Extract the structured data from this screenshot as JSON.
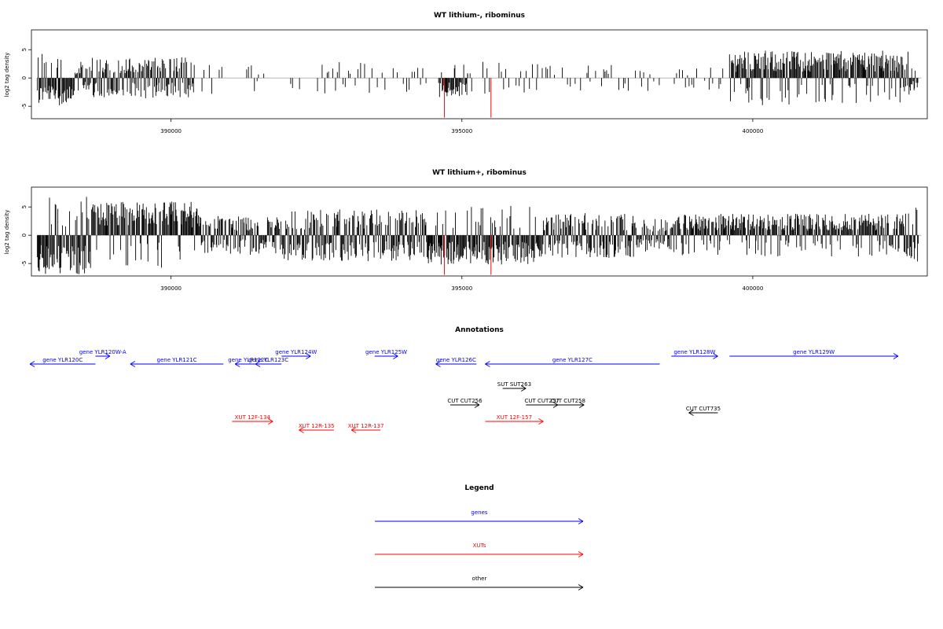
{
  "chart_data": [
    {
      "type": "bar",
      "title": "WT lithium-, ribominus",
      "ylabel": "log2 tag density",
      "xlim": [
        387600,
        403000
      ],
      "ylim": [
        -7.2,
        8.5
      ],
      "yticks": [
        -5,
        0,
        5
      ],
      "xticks": [
        390000,
        395000,
        400000
      ],
      "grid": false,
      "series": [
        {
          "bins": [
            {
              "start": 387700,
              "end": 388350,
              "mode": "neg",
              "amp": 4.2
            },
            {
              "start": 388350,
              "end": 388600,
              "mode": "mix",
              "amp": 2.5
            },
            {
              "start": 388600,
              "end": 390400,
              "mode": "mix",
              "amp": 3.2
            },
            {
              "start": 390400,
              "end": 390900,
              "mode": "sparse",
              "amp": 2.5
            },
            {
              "start": 391300,
              "end": 391600,
              "mode": "sparse",
              "amp": 2.2
            },
            {
              "start": 391950,
              "end": 393700,
              "mode": "sparse",
              "amp": 2.6
            },
            {
              "start": 393700,
              "end": 394400,
              "mode": "sparse",
              "amp": 2.2
            },
            {
              "start": 394600,
              "end": 395100,
              "mode": "neg",
              "amp": 3.0
            },
            {
              "start": 395100,
              "end": 396300,
              "mode": "sparse",
              "amp": 2.6
            },
            {
              "start": 396300,
              "end": 397400,
              "mode": "sparse",
              "amp": 2.2
            },
            {
              "start": 397400,
              "end": 398400,
              "mode": "sparse",
              "amp": 2.0
            },
            {
              "start": 398600,
              "end": 399200,
              "mode": "sparse",
              "amp": 1.8
            },
            {
              "start": 399250,
              "end": 399500,
              "mode": "sparse",
              "amp": 2.0
            },
            {
              "start": 399600,
              "end": 402700,
              "mode": "pos",
              "amp": 4.2
            },
            {
              "start": 402700,
              "end": 402850,
              "mode": "neg",
              "amp": 2.0
            }
          ],
          "highlights": [
            {
              "x": 394700,
              "y": -7.0,
              "color": "#ff0000"
            },
            {
              "x": 395500,
              "y": -7.0,
              "color": "#ff0000"
            }
          ]
        }
      ]
    },
    {
      "type": "bar",
      "title": "WT lithium+, ribominus",
      "ylabel": "log2 tag density",
      "xlim": [
        387600,
        403000
      ],
      "ylim": [
        -7.2,
        8.5
      ],
      "yticks": [
        -5,
        0,
        5
      ],
      "xticks": [
        390000,
        395000,
        400000
      ],
      "grid": false,
      "series": [
        {
          "bins": [
            {
              "start": 387700,
              "end": 388600,
              "mode": "neg",
              "amp": 6.0
            },
            {
              "start": 388600,
              "end": 390500,
              "mode": "pos",
              "amp": 5.2
            },
            {
              "start": 390500,
              "end": 391800,
              "mode": "mix",
              "amp": 3.0
            },
            {
              "start": 391800,
              "end": 394400,
              "mode": "mix",
              "amp": 4.0
            },
            {
              "start": 394400,
              "end": 396400,
              "mode": "neg",
              "amp": 4.5
            },
            {
              "start": 396400,
              "end": 398000,
              "mode": "mix",
              "amp": 3.5
            },
            {
              "start": 398000,
              "end": 398600,
              "mode": "mix",
              "amp": 2.5
            },
            {
              "start": 398600,
              "end": 402600,
              "mode": "pos",
              "amp": 3.3
            },
            {
              "start": 402600,
              "end": 402850,
              "mode": "neg",
              "amp": 4.5
            }
          ],
          "highlights": [
            {
              "x": 394700,
              "y": -7.0,
              "color": "#ff0000"
            },
            {
              "x": 395500,
              "y": -7.0,
              "color": "#ff0000"
            }
          ]
        }
      ]
    }
  ],
  "annotations": {
    "title": "Annotations",
    "features": [
      {
        "label": "gene YLR120C",
        "start": 387500,
        "end": 388700,
        "dir": "left",
        "row": 1,
        "type": "gene"
      },
      {
        "label": "gene YLR120W-A",
        "start": 388700,
        "end": 388950,
        "dir": "right",
        "row": 0,
        "type": "gene"
      },
      {
        "label": "gene YLR121C",
        "start": 389300,
        "end": 390900,
        "dir": "left",
        "row": 1,
        "type": "gene"
      },
      {
        "label": "gene YLR122C",
        "start": 391100,
        "end": 391550,
        "dir": "left",
        "row": 1,
        "type": "gene"
      },
      {
        "label": "gene YLR123C",
        "start": 391450,
        "end": 391900,
        "dir": "left",
        "row": 1,
        "type": "gene"
      },
      {
        "label": "gene YLR124W",
        "start": 391900,
        "end": 392400,
        "dir": "right",
        "row": 0,
        "type": "gene"
      },
      {
        "label": "gene YLR125W",
        "start": 393500,
        "end": 393900,
        "dir": "right",
        "row": 0,
        "type": "gene"
      },
      {
        "label": "gene YLR126C",
        "start": 394550,
        "end": 395250,
        "dir": "left",
        "row": 1,
        "type": "gene"
      },
      {
        "label": "gene YLR127C",
        "start": 395400,
        "end": 398400,
        "dir": "left",
        "row": 1,
        "type": "gene"
      },
      {
        "label": "gene YLR128W",
        "start": 398600,
        "end": 399400,
        "dir": "right",
        "row": 0,
        "type": "gene"
      },
      {
        "label": "gene YLR129W",
        "start": 399600,
        "end": 402500,
        "dir": "right",
        "row": 0,
        "type": "gene"
      },
      {
        "label": "SUT SUT263",
        "start": 395700,
        "end": 396100,
        "dir": "right",
        "row": 2,
        "type": "other"
      },
      {
        "label": "CUT CUT256",
        "start": 394800,
        "end": 395300,
        "dir": "right",
        "row": 3,
        "type": "other"
      },
      {
        "label": "CUT CUT257",
        "start": 396100,
        "end": 396650,
        "dir": "right",
        "row": 3,
        "type": "other"
      },
      {
        "label": "CUT CUT258",
        "start": 396550,
        "end": 397100,
        "dir": "right",
        "row": 3,
        "type": "other"
      },
      {
        "label": "CUT CUT735",
        "start": 398900,
        "end": 399400,
        "dir": "left",
        "row": 4,
        "type": "other"
      },
      {
        "label": "XUT 12F-134",
        "start": 391050,
        "end": 391750,
        "dir": "right",
        "row": 5,
        "type": "xut"
      },
      {
        "label": "XUT 12R-135",
        "start": 392200,
        "end": 392800,
        "dir": "left",
        "row": 6,
        "type": "xut"
      },
      {
        "label": "XUT 12R-137",
        "start": 393100,
        "end": 393600,
        "dir": "left",
        "row": 6,
        "type": "xut"
      },
      {
        "label": "XUT 12F-157",
        "start": 395400,
        "end": 396400,
        "dir": "right",
        "row": 5,
        "type": "xut"
      }
    ]
  },
  "legend": {
    "title": "Legend",
    "items": [
      {
        "label": "genes",
        "color": "#0000ff"
      },
      {
        "label": "XUTs",
        "color": "#ff0000"
      },
      {
        "label": "other",
        "color": "#000000"
      }
    ]
  },
  "colors": {
    "gene": "#0000ff",
    "xut": "#ff0000",
    "other": "#000000",
    "axis": "#000000",
    "zero": "#aaaaaa",
    "bar": "#000000"
  }
}
